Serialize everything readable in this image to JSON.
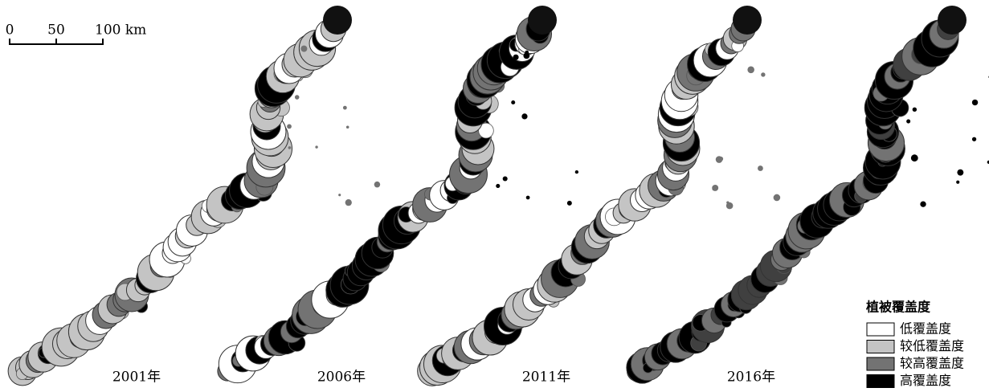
{
  "scale_bar": {
    "labels": [
      "0",
      "50",
      "100 km"
    ]
  },
  "panels": [
    {
      "label": "2001年"
    },
    {
      "label": "2006年"
    },
    {
      "label": "2011年"
    },
    {
      "label": "2016年"
    }
  ],
  "legend": {
    "title": "植被覆盖度",
    "items": [
      {
        "label": "低覆盖度",
        "color": "#ffffff"
      },
      {
        "label": "较低覆盖度",
        "color": "#c4c4c4"
      },
      {
        "label": "较高覆盖度",
        "color": "#737373"
      },
      {
        "label": "高覆盖度",
        "color": "#000000"
      }
    ]
  }
}
